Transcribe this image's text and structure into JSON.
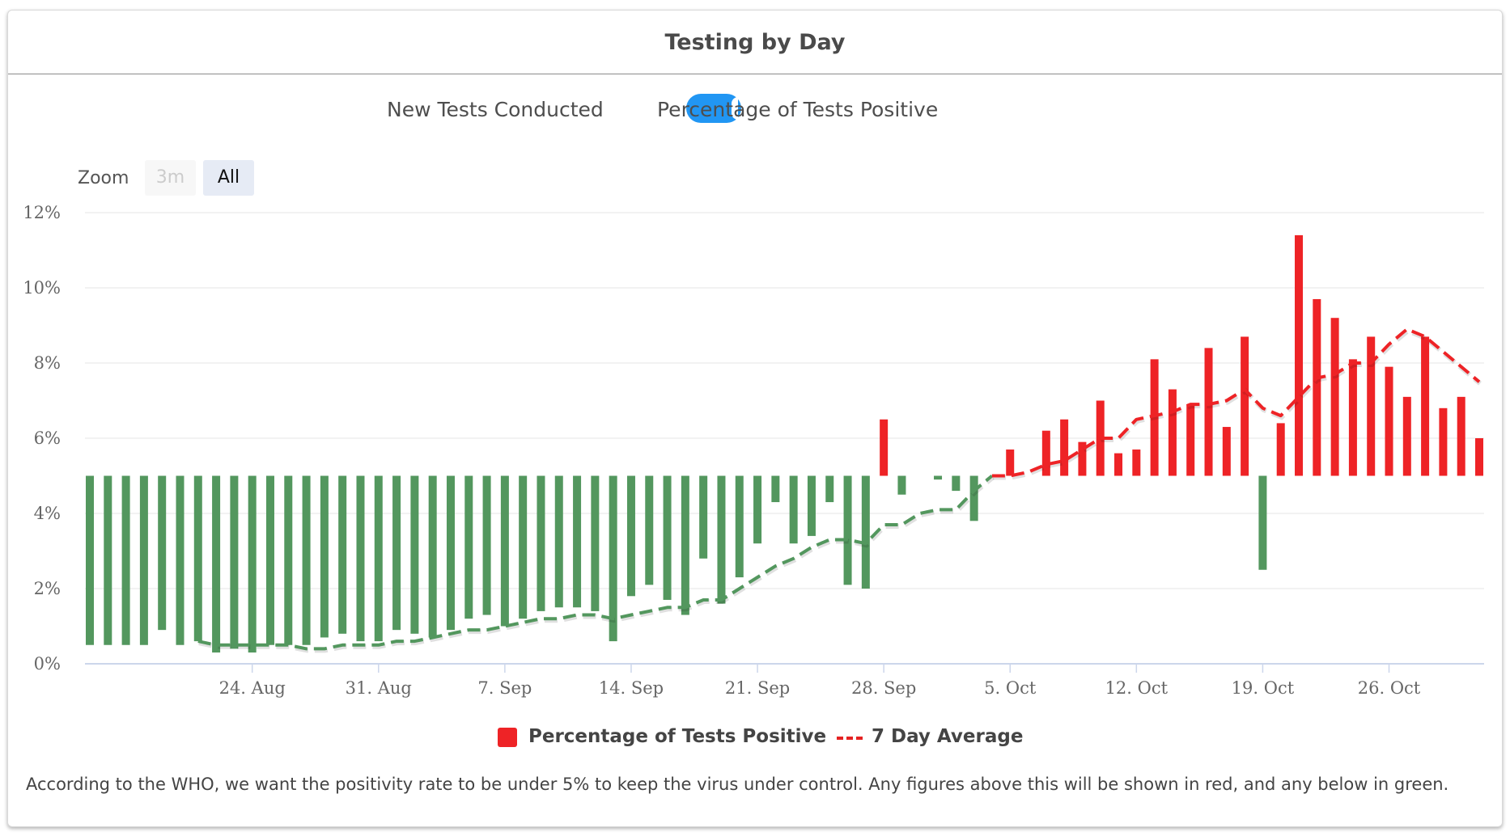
{
  "title": "Testing by Day",
  "toggle": {
    "left_label": "New Tests Conducted",
    "right_label": "Percentage of Tests Positive",
    "state": "right"
  },
  "zoom": {
    "label": "Zoom",
    "buttons": [
      "3m",
      "All"
    ],
    "selected": "All"
  },
  "legend": {
    "bars": "Percentage of Tests Positive",
    "line": "7 Day Average"
  },
  "note": "According to the WHO, we want the positivity rate to be under 5% to keep the virus under control. Any figures above this will be shown in red, and any below in green.",
  "colors": {
    "above": "#ee2326",
    "below": "#53975e",
    "grid": "#e6e6e6",
    "axis": "#ccd6eb",
    "tick_text": "#666666"
  },
  "chart_data": {
    "type": "bar",
    "threshold": 5,
    "ylim": [
      0,
      12
    ],
    "yticks": [
      "0%",
      "2%",
      "4%",
      "6%",
      "8%",
      "10%",
      "12%"
    ],
    "xlim": [
      "2020-08-15",
      "2020-10-31"
    ],
    "xticks": [
      "24. Aug",
      "31. Aug",
      "7. Sep",
      "14. Sep",
      "21. Sep",
      "28. Sep",
      "5. Oct",
      "12. Oct",
      "19. Oct",
      "26. Oct"
    ],
    "xtick_dates": [
      "2020-08-24",
      "2020-08-31",
      "2020-09-07",
      "2020-09-14",
      "2020-09-21",
      "2020-09-28",
      "2020-10-05",
      "2020-10-12",
      "2020-10-19",
      "2020-10-26"
    ],
    "dates": [
      "2020-08-15",
      "2020-08-16",
      "2020-08-17",
      "2020-08-18",
      "2020-08-19",
      "2020-08-20",
      "2020-08-21",
      "2020-08-22",
      "2020-08-23",
      "2020-08-24",
      "2020-08-25",
      "2020-08-26",
      "2020-08-27",
      "2020-08-28",
      "2020-08-29",
      "2020-08-30",
      "2020-08-31",
      "2020-09-01",
      "2020-09-02",
      "2020-09-03",
      "2020-09-04",
      "2020-09-05",
      "2020-09-06",
      "2020-09-07",
      "2020-09-08",
      "2020-09-09",
      "2020-09-10",
      "2020-09-11",
      "2020-09-12",
      "2020-09-13",
      "2020-09-14",
      "2020-09-15",
      "2020-09-16",
      "2020-09-17",
      "2020-09-18",
      "2020-09-19",
      "2020-09-20",
      "2020-09-21",
      "2020-09-22",
      "2020-09-23",
      "2020-09-24",
      "2020-09-25",
      "2020-09-26",
      "2020-09-27",
      "2020-09-28",
      "2020-09-29",
      "2020-09-30",
      "2020-10-01",
      "2020-10-02",
      "2020-10-03",
      "2020-10-04",
      "2020-10-05",
      "2020-10-06",
      "2020-10-07",
      "2020-10-08",
      "2020-10-09",
      "2020-10-10",
      "2020-10-11",
      "2020-10-12",
      "2020-10-13",
      "2020-10-14",
      "2020-10-15",
      "2020-10-16",
      "2020-10-17",
      "2020-10-18",
      "2020-10-19",
      "2020-10-20",
      "2020-10-21",
      "2020-10-22",
      "2020-10-23",
      "2020-10-24",
      "2020-10-25",
      "2020-10-26",
      "2020-10-27",
      "2020-10-28",
      "2020-10-29",
      "2020-10-30",
      "2020-10-31"
    ],
    "series": [
      {
        "name": "Percentage of Tests Positive",
        "values": [
          0.5,
          0.5,
          0.5,
          0.5,
          0.9,
          0.5,
          0.6,
          0.3,
          0.4,
          0.3,
          0.5,
          0.5,
          0.5,
          0.7,
          0.8,
          0.6,
          0.6,
          0.9,
          0.8,
          0.7,
          0.9,
          1.2,
          1.3,
          1.0,
          1.2,
          1.4,
          1.5,
          1.5,
          1.4,
          0.6,
          1.8,
          2.1,
          1.7,
          1.3,
          2.8,
          1.6,
          2.3,
          3.2,
          4.3,
          3.2,
          3.4,
          4.3,
          2.1,
          2.0,
          6.5,
          4.5,
          null,
          4.9,
          4.6,
          3.8,
          null,
          5.7,
          null,
          6.2,
          6.5,
          5.9,
          7.0,
          5.6,
          5.7,
          8.1,
          7.3,
          6.9,
          8.4,
          6.3,
          8.7,
          2.5,
          6.4,
          11.4,
          9.7,
          9.2,
          8.1,
          8.7,
          7.9,
          7.1,
          8.7,
          6.8,
          7.1,
          6.0
        ]
      },
      {
        "name": "7 Day Average",
        "values": [
          null,
          null,
          null,
          null,
          null,
          null,
          0.6,
          0.5,
          0.5,
          0.5,
          0.5,
          0.5,
          0.4,
          0.4,
          0.5,
          0.5,
          0.5,
          0.6,
          0.6,
          0.7,
          0.8,
          0.9,
          0.9,
          1.0,
          1.1,
          1.2,
          1.2,
          1.3,
          1.3,
          1.2,
          1.3,
          1.4,
          1.5,
          1.5,
          1.7,
          1.7,
          2.0,
          2.3,
          2.6,
          2.8,
          3.1,
          3.3,
          3.3,
          3.2,
          3.7,
          3.7,
          4.0,
          4.1,
          4.1,
          4.6,
          5.0,
          5.0,
          5.1,
          5.3,
          5.4,
          5.7,
          6.0,
          6.0,
          6.5,
          6.6,
          6.7,
          6.9,
          6.9,
          7.0,
          7.3,
          6.8,
          6.6,
          7.1,
          7.6,
          7.7,
          8.0,
          8.0,
          8.5,
          8.9,
          8.7,
          8.3,
          7.9,
          7.5
        ]
      }
    ],
    "legend": {
      "placement": "bottom-center"
    }
  }
}
